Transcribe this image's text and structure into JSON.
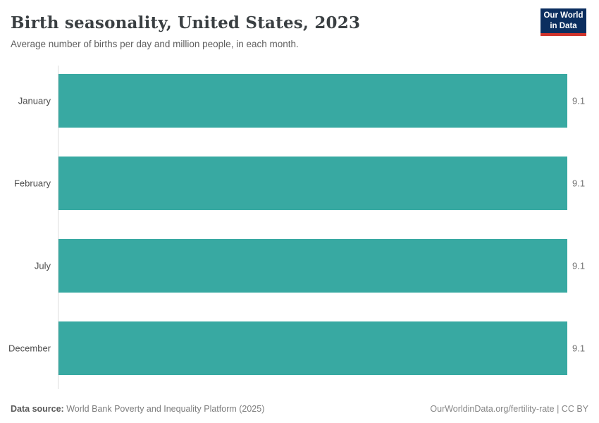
{
  "header": {
    "title": "Birth seasonality, United States, 2023",
    "subtitle": "Average number of births per day and million people, in each month.",
    "logo": {
      "line1": "Our World",
      "line2": "in Data",
      "bg_color": "#0b2e5f",
      "accent_color": "#d0342c"
    }
  },
  "chart_data": {
    "type": "bar",
    "orientation": "horizontal",
    "title": "Birth seasonality, United States, 2023",
    "subtitle": "Average number of births per day and million people, in each month.",
    "categories": [
      "January",
      "February",
      "July",
      "December"
    ],
    "values": [
      9.1,
      9.1,
      9.1,
      9.1
    ],
    "value_labels": [
      "9.1",
      "9.1",
      "9.1",
      "9.1"
    ],
    "xlabel": "",
    "ylabel": "",
    "xlim": [
      0,
      9.1
    ],
    "grid": false,
    "legend": "none",
    "bar_color": "#38a9a2",
    "axis_color": "#dddddd"
  },
  "footer": {
    "data_source_label": "Data source:",
    "data_source_value": "World Bank Poverty and Inequality Platform (2025)",
    "credit": "OurWorldinData.org/fertility-rate | CC BY"
  }
}
